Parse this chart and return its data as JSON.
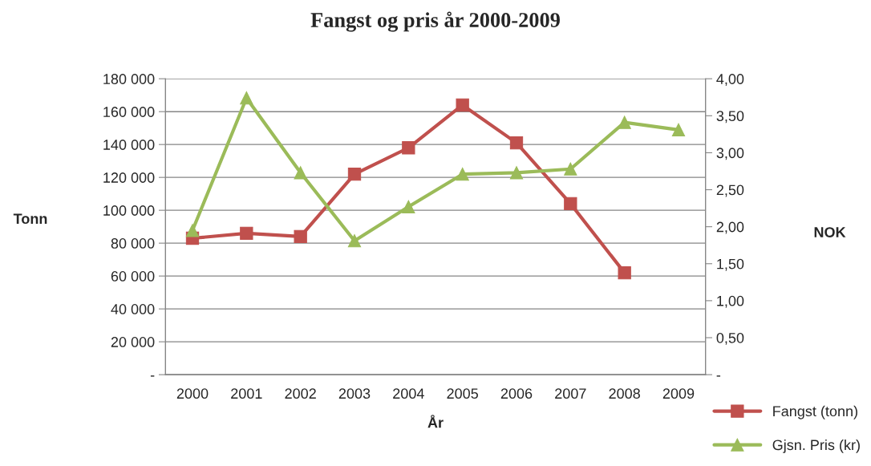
{
  "chart_data": {
    "type": "line",
    "title": "Fangst og pris år 2000-2009",
    "xlabel": "År",
    "ylabel": "Tonn",
    "y2label": "NOK",
    "categories": [
      "2000",
      "2001",
      "2002",
      "2003",
      "2004",
      "2005",
      "2006",
      "2007",
      "2008",
      "2009"
    ],
    "series": [
      {
        "name": "Fangst (tonn)",
        "color": "#c0504d",
        "marker": "square",
        "values": [
          83000,
          86000,
          84000,
          122000,
          138000,
          164000,
          141000,
          104000,
          62000,
          null
        ]
      },
      {
        "name": "Gjsn. Pris (kr)",
        "color": "#9bbb59",
        "marker": "triangle",
        "axis": "y2",
        "values": [
          1.95,
          3.74,
          2.73,
          1.81,
          2.27,
          2.71,
          2.73,
          2.78,
          3.41,
          3.31
        ]
      }
    ],
    "ylim": [
      0,
      180000
    ],
    "yticks": [
      {
        "value": 0,
        "label": "-"
      },
      {
        "value": 20000,
        "label": "20 000"
      },
      {
        "value": 40000,
        "label": "40 000"
      },
      {
        "value": 60000,
        "label": "60 000"
      },
      {
        "value": 80000,
        "label": "80 000"
      },
      {
        "value": 100000,
        "label": "100 000"
      },
      {
        "value": 120000,
        "label": "120 000"
      },
      {
        "value": 140000,
        "label": "140 000"
      },
      {
        "value": 160000,
        "label": "160 000"
      },
      {
        "value": 180000,
        "label": "180 000"
      }
    ],
    "y2lim": [
      0,
      4
    ],
    "y2ticks": [
      {
        "value": 0,
        "label": "-"
      },
      {
        "value": 0.5,
        "label": "0,50"
      },
      {
        "value": 1,
        "label": "1,00"
      },
      {
        "value": 1.5,
        "label": "1,50"
      },
      {
        "value": 2,
        "label": "2,00"
      },
      {
        "value": 2.5,
        "label": "2,50"
      },
      {
        "value": 3,
        "label": "3,00"
      },
      {
        "value": 3.5,
        "label": "3,50"
      },
      {
        "value": 4,
        "label": "4,00"
      }
    ],
    "grid": "y",
    "legend": "bottom right",
    "line_style": "solid"
  }
}
